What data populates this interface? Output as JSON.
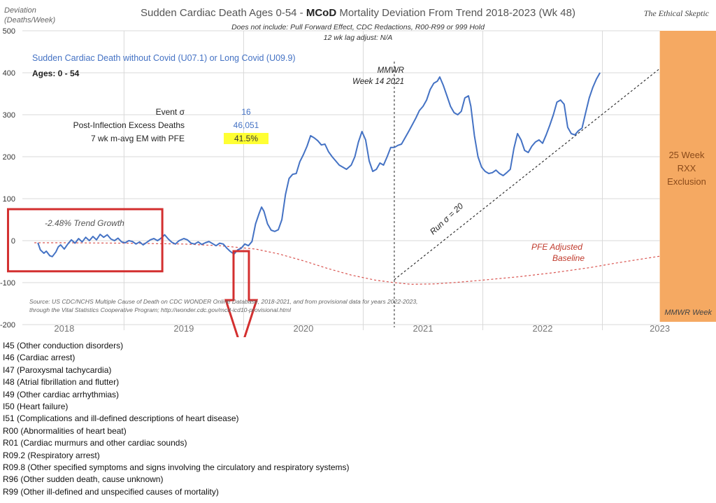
{
  "header": {
    "title_a": "Sudden Cardiac Death Ages 0-54 - ",
    "title_bold": "MCoD",
    "title_b": " Mortality Deviation From Trend  2018-2023 (Wk 48)",
    "subtitle1": "Does not include: Pull Forward Effect,  CDC Redactions, R00-R99 or 999 Hold",
    "subtitle2": "12 wk lag adjust: N/A",
    "brand": "The Ethical Skeptic"
  },
  "annotations": {
    "series_title": "Sudden Cardiac Death without Covid (U07.1) or Long Covid (U09.9)",
    "ages": "Ages: 0 - 54",
    "stats": [
      {
        "label": "Event σ",
        "value": "16",
        "highlight": false
      },
      {
        "label": "Post-Inflection Excess Deaths",
        "value": "46,051",
        "highlight": false
      },
      {
        "label": "7 wk m-avg EM with PFE",
        "value": "41.5%",
        "highlight": true
      }
    ],
    "mmwr_line1": "MMWR",
    "mmwr_line2": "Week 14 2021",
    "trend_growth": "-2.48% Trend Growth",
    "run_sigma": "Run σ = 20",
    "pfe_line1": "PFE Adjusted",
    "pfe_line2": "Baseline",
    "exclusion_line1": "25 Week",
    "exclusion_line2": "RXX",
    "exclusion_line3": "Exclusion",
    "mmwr_week": "MMWR Week",
    "source": "Source: US CDC/NCHS Multiple Cause of Death on CDC WONDER Online Database, 2018-2021, and from provisional data for years 2022-2023, through the Vital Statistics Cooperative Program; http://wonder.cdc.gov/mcd-icd10-provisional.html"
  },
  "colors": {
    "series": "#4472C4",
    "baseline": "#d9534f",
    "highlight_box": "#d32f2f",
    "exclusion": "#f5a962",
    "grid": "#d9d9d9"
  },
  "chart_data": {
    "type": "line",
    "ylabel": "Deviation (Deaths/Week)",
    "ylim": [
      -200,
      500
    ],
    "yticks": [
      -200,
      -100,
      0,
      100,
      200,
      300,
      400,
      500
    ],
    "x_domain": [
      2017.65,
      2023.45
    ],
    "year_labels": [
      {
        "year": "2018",
        "x": 2018.0
      },
      {
        "year": "2019",
        "x": 2019.0
      },
      {
        "year": "2020",
        "x": 2020.0
      },
      {
        "year": "2021",
        "x": 2021.0
      },
      {
        "year": "2022",
        "x": 2022.0
      },
      {
        "year": "2023",
        "x": 2022.98
      }
    ],
    "year_gridlines": [
      2018.5,
      2019.5,
      2020.5,
      2021.5,
      2022.5
    ],
    "mmwr_week14_2021_x": 2020.76,
    "exclusion_range": [
      2022.98,
      2023.45
    ],
    "series": [
      {
        "name": "Sudden Cardiac Death without Covid (U07.1) or Long Covid (U09.9)",
        "points": [
          [
            2017.78,
            -5
          ],
          [
            2017.8,
            -22
          ],
          [
            2017.83,
            -30
          ],
          [
            2017.85,
            -25
          ],
          [
            2017.88,
            -36
          ],
          [
            2017.9,
            -38
          ],
          [
            2017.93,
            -27
          ],
          [
            2017.95,
            -15
          ],
          [
            2017.97,
            -10
          ],
          [
            2018.0,
            -20
          ],
          [
            2018.03,
            -8
          ],
          [
            2018.06,
            2
          ],
          [
            2018.09,
            -6
          ],
          [
            2018.12,
            5
          ],
          [
            2018.15,
            -3
          ],
          [
            2018.18,
            8
          ],
          [
            2018.21,
            0
          ],
          [
            2018.24,
            10
          ],
          [
            2018.27,
            2
          ],
          [
            2018.3,
            15
          ],
          [
            2018.33,
            8
          ],
          [
            2018.36,
            14
          ],
          [
            2018.39,
            4
          ],
          [
            2018.42,
            0
          ],
          [
            2018.45,
            6
          ],
          [
            2018.48,
            -3
          ],
          [
            2018.51,
            -5
          ],
          [
            2018.54,
            0
          ],
          [
            2018.57,
            -2
          ],
          [
            2018.6,
            -8
          ],
          [
            2018.63,
            -3
          ],
          [
            2018.66,
            -10
          ],
          [
            2018.69,
            -4
          ],
          [
            2018.72,
            2
          ],
          [
            2018.75,
            5
          ],
          [
            2018.78,
            0
          ],
          [
            2018.81,
            6
          ],
          [
            2018.84,
            14
          ],
          [
            2018.87,
            4
          ],
          [
            2018.9,
            -4
          ],
          [
            2018.93,
            -8
          ],
          [
            2018.96,
            0
          ],
          [
            2019.0,
            5
          ],
          [
            2019.03,
            2
          ],
          [
            2019.06,
            -6
          ],
          [
            2019.09,
            -8
          ],
          [
            2019.12,
            -3
          ],
          [
            2019.15,
            -9
          ],
          [
            2019.18,
            -5
          ],
          [
            2019.21,
            -2
          ],
          [
            2019.24,
            -7
          ],
          [
            2019.27,
            -12
          ],
          [
            2019.3,
            -6
          ],
          [
            2019.33,
            -8
          ],
          [
            2019.36,
            -18
          ],
          [
            2019.39,
            -26
          ],
          [
            2019.42,
            -32
          ],
          [
            2019.45,
            -22
          ],
          [
            2019.48,
            -18
          ],
          [
            2019.51,
            -8
          ],
          [
            2019.54,
            -12
          ],
          [
            2019.57,
            -2
          ],
          [
            2019.6,
            40
          ],
          [
            2019.63,
            65
          ],
          [
            2019.65,
            80
          ],
          [
            2019.67,
            70
          ],
          [
            2019.7,
            40
          ],
          [
            2019.73,
            25
          ],
          [
            2019.76,
            22
          ],
          [
            2019.79,
            26
          ],
          [
            2019.82,
            50
          ],
          [
            2019.85,
            110
          ],
          [
            2019.88,
            148
          ],
          [
            2019.91,
            158
          ],
          [
            2019.94,
            160
          ],
          [
            2019.97,
            188
          ],
          [
            2020.0,
            205
          ],
          [
            2020.03,
            225
          ],
          [
            2020.06,
            250
          ],
          [
            2020.09,
            245
          ],
          [
            2020.12,
            238
          ],
          [
            2020.15,
            228
          ],
          [
            2020.18,
            230
          ],
          [
            2020.21,
            212
          ],
          [
            2020.24,
            200
          ],
          [
            2020.27,
            190
          ],
          [
            2020.3,
            180
          ],
          [
            2020.33,
            175
          ],
          [
            2020.36,
            170
          ],
          [
            2020.4,
            180
          ],
          [
            2020.43,
            200
          ],
          [
            2020.46,
            235
          ],
          [
            2020.49,
            260
          ],
          [
            2020.52,
            240
          ],
          [
            2020.55,
            190
          ],
          [
            2020.58,
            165
          ],
          [
            2020.61,
            170
          ],
          [
            2020.64,
            185
          ],
          [
            2020.67,
            180
          ],
          [
            2020.7,
            200
          ],
          [
            2020.73,
            222
          ],
          [
            2020.76,
            222
          ],
          [
            2020.79,
            227
          ],
          [
            2020.82,
            230
          ],
          [
            2020.85,
            245
          ],
          [
            2020.88,
            260
          ],
          [
            2020.91,
            276
          ],
          [
            2020.94,
            292
          ],
          [
            2020.97,
            310
          ],
          [
            2021.0,
            320
          ],
          [
            2021.03,
            335
          ],
          [
            2021.06,
            360
          ],
          [
            2021.09,
            375
          ],
          [
            2021.12,
            380
          ],
          [
            2021.14,
            390
          ],
          [
            2021.17,
            370
          ],
          [
            2021.2,
            345
          ],
          [
            2021.23,
            320
          ],
          [
            2021.26,
            305
          ],
          [
            2021.29,
            300
          ],
          [
            2021.32,
            308
          ],
          [
            2021.35,
            340
          ],
          [
            2021.38,
            345
          ],
          [
            2021.4,
            320
          ],
          [
            2021.43,
            250
          ],
          [
            2021.46,
            200
          ],
          [
            2021.49,
            175
          ],
          [
            2021.52,
            165
          ],
          [
            2021.55,
            160
          ],
          [
            2021.58,
            162
          ],
          [
            2021.61,
            168
          ],
          [
            2021.64,
            160
          ],
          [
            2021.67,
            155
          ],
          [
            2021.7,
            162
          ],
          [
            2021.73,
            170
          ],
          [
            2021.76,
            220
          ],
          [
            2021.79,
            255
          ],
          [
            2021.82,
            240
          ],
          [
            2021.85,
            215
          ],
          [
            2021.88,
            210
          ],
          [
            2021.91,
            225
          ],
          [
            2021.94,
            235
          ],
          [
            2021.97,
            240
          ],
          [
            2022.0,
            232
          ],
          [
            2022.03,
            252
          ],
          [
            2022.06,
            275
          ],
          [
            2022.09,
            300
          ],
          [
            2022.12,
            330
          ],
          [
            2022.15,
            335
          ],
          [
            2022.18,
            325
          ],
          [
            2022.21,
            270
          ],
          [
            2022.24,
            255
          ],
          [
            2022.27,
            252
          ],
          [
            2022.3,
            262
          ],
          [
            2022.33,
            268
          ],
          [
            2022.36,
            305
          ],
          [
            2022.39,
            340
          ],
          [
            2022.42,
            365
          ],
          [
            2022.45,
            385
          ],
          [
            2022.48,
            400
          ]
        ]
      },
      {
        "name": "PFE Adjusted Baseline",
        "points": [
          [
            2017.75,
            -5
          ],
          [
            2018.0,
            -5
          ],
          [
            2018.5,
            -6
          ],
          [
            2019.0,
            -8
          ],
          [
            2019.3,
            -12
          ],
          [
            2019.6,
            -20
          ],
          [
            2019.8,
            -32
          ],
          [
            2020.0,
            -48
          ],
          [
            2020.2,
            -66
          ],
          [
            2020.4,
            -82
          ],
          [
            2020.6,
            -94
          ],
          [
            2020.76,
            -100
          ],
          [
            2020.9,
            -104
          ],
          [
            2021.1,
            -103
          ],
          [
            2021.3,
            -99
          ],
          [
            2021.5,
            -94
          ],
          [
            2021.8,
            -86
          ],
          [
            2022.1,
            -76
          ],
          [
            2022.4,
            -64
          ],
          [
            2022.6,
            -54
          ],
          [
            2022.98,
            -37
          ]
        ]
      },
      {
        "name": "Run σ = 20",
        "points": [
          [
            2020.76,
            -93
          ],
          [
            2022.98,
            410
          ]
        ]
      }
    ],
    "highlight_box": {
      "x0": 2017.53,
      "x1": 2018.82,
      "y0": -73,
      "y1": 75
    },
    "arrow": {
      "x": 2019.48,
      "y_top": -25
    }
  },
  "codes": [
    "I45 (Other conduction  disorders)",
    "I46 (Cardiac arrest)",
    "I47 (Paroxysmal tachycardia)",
    "I48 (Atrial fibrillation  and flutter)",
    "I49 (Other cardiac arrhythmias)",
    "I50 (Heart failure)",
    "I51 (Complications  and ill-defined  descriptions of heart disease)",
    "R00 (Abnormalities of heart beat)",
    "R01 (Cardiac murmurs and other cardiac sounds)",
    "R09.2 (Respiratory arrest)",
    "R09.8 (Other specified  symptoms and signs involving  the circulatory and respiratory systems)",
    "R96 (Other sudden death, cause unknown)",
    "R99 (Other ill-defined  and unspecified  causes of mortality)"
  ]
}
